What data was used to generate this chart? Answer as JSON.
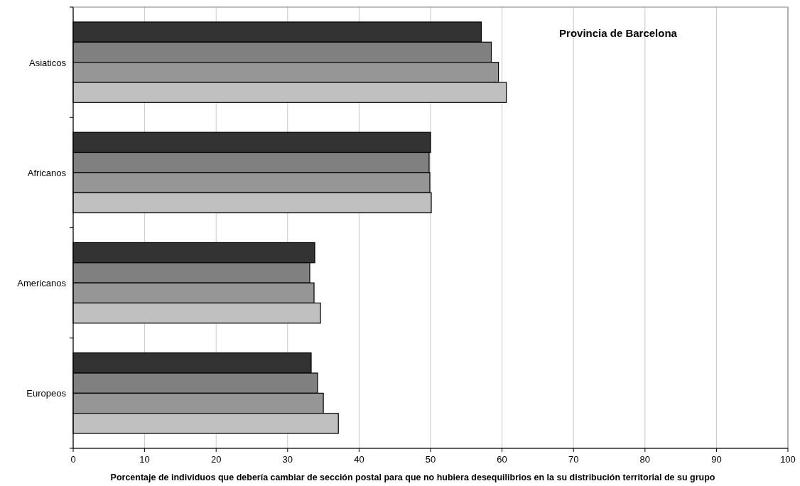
{
  "chart_data": {
    "type": "bar",
    "orientation": "horizontal",
    "title": "Provincia de Barcelona",
    "xlabel": "Porcentaje de individuos que debería cambiar de sección postal para que no hubiera desequilibrios en la su distribución territorial de su grupo",
    "categories": [
      "Asiaticos",
      "Africanos",
      "Americanos",
      "Europeos"
    ],
    "series": [
      {
        "color": "#333333",
        "values": [
          57.1,
          50.0,
          33.8,
          33.3
        ]
      },
      {
        "color": "#808080",
        "values": [
          58.5,
          49.8,
          33.1,
          34.2
        ]
      },
      {
        "color": "#969696",
        "values": [
          59.5,
          49.9,
          33.7,
          35.0
        ]
      },
      {
        "color": "#c0c0c0",
        "values": [
          60.6,
          50.1,
          34.6,
          37.1
        ]
      }
    ],
    "xlim": [
      0,
      100
    ],
    "xticks": [
      0,
      10,
      20,
      30,
      40,
      50,
      60,
      70,
      80,
      90,
      100
    ],
    "grid": "x"
  }
}
